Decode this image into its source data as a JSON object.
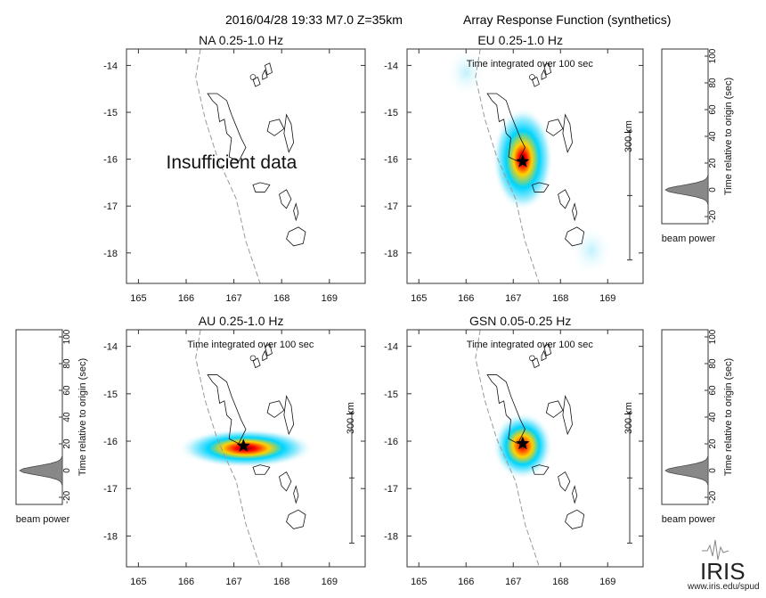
{
  "header": {
    "event": "2016/04/28 19:33  M7.0  Z=35km",
    "product": "Array Response Function (synthetics)"
  },
  "panels": [
    {
      "id": "na",
      "title": "NA  0.25-1.0 Hz",
      "subtitle": "",
      "note": "Insufficient data",
      "has_blob": false,
      "scale_label": ""
    },
    {
      "id": "eu",
      "title": "EU  0.25-1.0 Hz",
      "subtitle": "Time integrated over 100 sec",
      "note": "",
      "has_blob": true,
      "scale_label": "300 km"
    },
    {
      "id": "au",
      "title": "AU  0.25-1.0 Hz",
      "subtitle": "Time integrated over 100 sec",
      "note": "",
      "has_blob": true,
      "scale_label": "300 km"
    },
    {
      "id": "gsn",
      "title": "GSN  0.05-0.25 Hz",
      "subtitle": "Time integrated over 100 sec",
      "note": "",
      "has_blob": true,
      "scale_label": "300 km"
    }
  ],
  "map_axes": {
    "x_ticks": [
      "165",
      "166",
      "167",
      "168",
      "169"
    ],
    "y_ticks": [
      "-14",
      "-15",
      "-16",
      "-17",
      "-18"
    ]
  },
  "beam_axes": {
    "ylabel": "Time relative to origin (sec)",
    "xlabel": "beam power",
    "y_ticks": [
      "100",
      "80",
      "60",
      "40",
      "20",
      "0",
      "-20"
    ]
  },
  "footer": {
    "logo": "IRIS",
    "url": "www.iris.edu/spud"
  },
  "colors": {
    "hot": "#ff0000",
    "mid": "#ffd200",
    "cool": "#00d0ff",
    "fill": "#888888"
  }
}
